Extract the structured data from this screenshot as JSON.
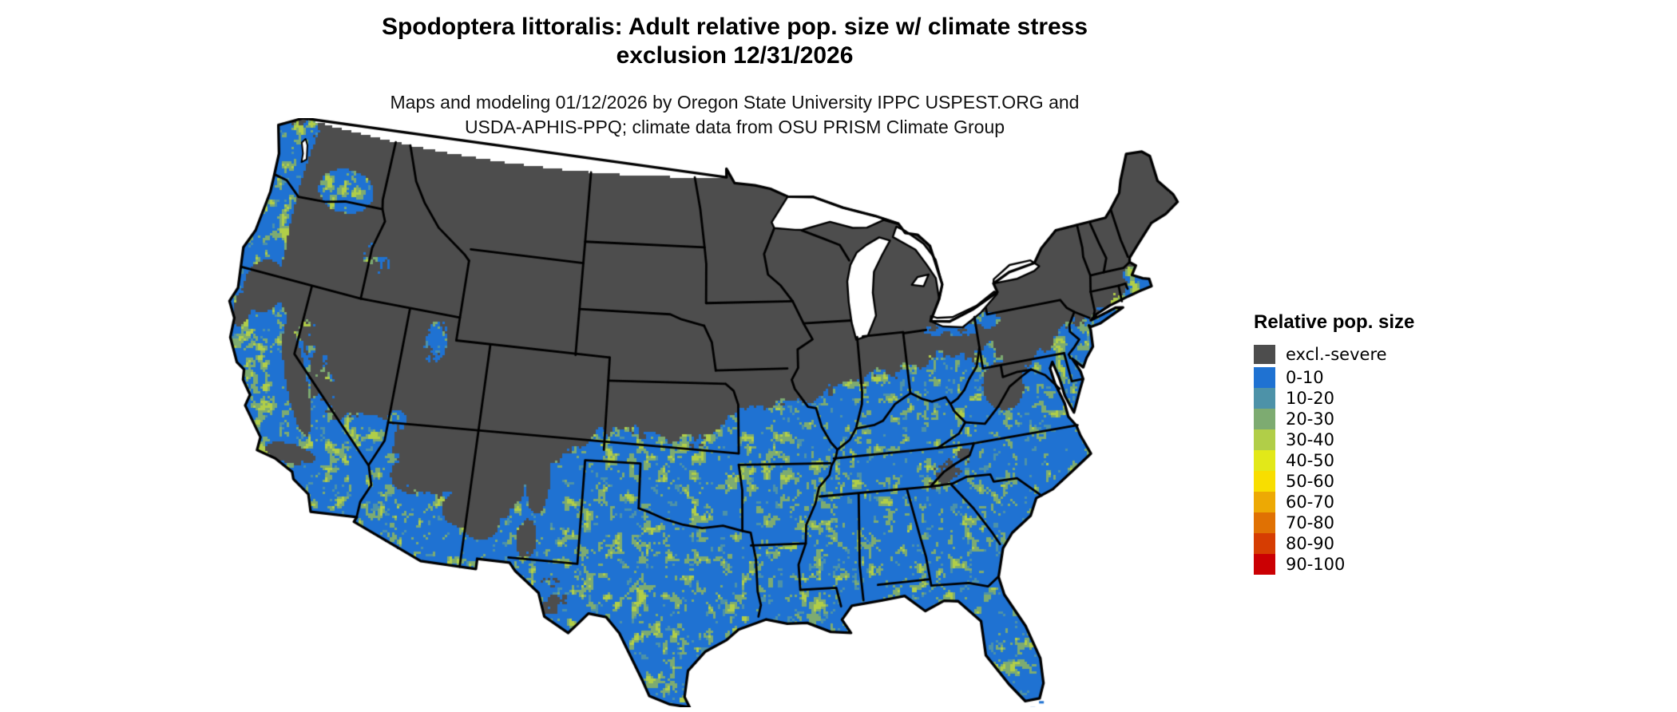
{
  "title": {
    "line1": "Spodoptera littoralis: Adult relative pop. size w/ climate stress",
    "line2": "exclusion 12/31/2026"
  },
  "subtitle": {
    "line1": "Maps and modeling 01/12/2026 by Oregon State University IPPC USPEST.ORG and",
    "line2": "USDA-APHIS-PPQ; climate data from OSU PRISM Climate Group"
  },
  "legend": {
    "title": "Relative pop. size",
    "items": [
      {
        "label": "excl.-severe",
        "color": "#4d4d4d"
      },
      {
        "label": "0-10",
        "color": "#1f72d2"
      },
      {
        "label": "10-20",
        "color": "#4d92a8"
      },
      {
        "label": "20-30",
        "color": "#7dab71"
      },
      {
        "label": "30-40",
        "color": "#b1ce48"
      },
      {
        "label": "40-50",
        "color": "#e2e819"
      },
      {
        "label": "50-60",
        "color": "#f8de00"
      },
      {
        "label": "60-70",
        "color": "#eda904"
      },
      {
        "label": "70-80",
        "color": "#e07103"
      },
      {
        "label": "80-90",
        "color": "#d63d02"
      },
      {
        "label": "90-100",
        "color": "#cb0003"
      }
    ]
  },
  "map": {
    "kind": "raster-choropleth-conus",
    "water_color": "#ffffff",
    "border_color": "#000000"
  }
}
